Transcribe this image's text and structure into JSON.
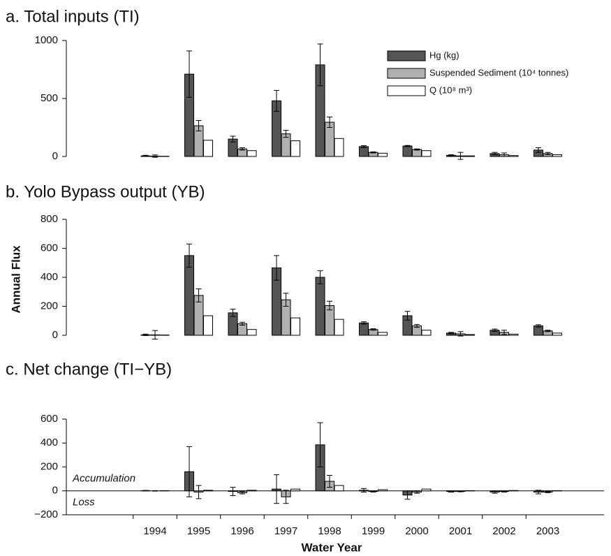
{
  "chart_data": [
    {
      "type": "bar",
      "title": "a. Total inputs (TI)",
      "ylim": [
        0,
        1000
      ],
      "yticks": [
        0,
        500,
        1000
      ],
      "legend": "upper right",
      "series": [
        {
          "name": "Hg (kg)",
          "color": "#555555",
          "values": [
            5,
            710,
            150,
            480,
            790,
            85,
            90,
            10,
            25,
            55
          ],
          "errors": [
            5,
            200,
            25,
            90,
            180,
            8,
            5,
            5,
            10,
            20
          ]
        },
        {
          "name": "Suspended Sediment (10⁴ tonnes)",
          "color": "#b0b0b0",
          "values": [
            3,
            265,
            65,
            195,
            295,
            35,
            60,
            5,
            15,
            25
          ],
          "errors": [
            10,
            45,
            10,
            30,
            45,
            5,
            5,
            30,
            15,
            10
          ]
        },
        {
          "name": "Q (10⁸ m³)",
          "color": "#ffffff",
          "values": [
            2,
            140,
            50,
            135,
            155,
            28,
            50,
            5,
            8,
            15
          ]
        }
      ]
    },
    {
      "type": "bar",
      "title": "b. Yolo Bypass output (YB)",
      "ylabel": "Annual Flux",
      "ylim": [
        0,
        800
      ],
      "yticks": [
        0,
        200,
        400,
        600,
        800
      ],
      "series": [
        {
          "color": "#555555",
          "values": [
            3,
            550,
            155,
            465,
            400,
            85,
            135,
            15,
            35,
            65
          ],
          "errors": [
            5,
            80,
            25,
            85,
            45,
            8,
            30,
            5,
            8,
            8
          ]
        },
        {
          "color": "#b0b0b0",
          "values": [
            3,
            275,
            80,
            245,
            205,
            40,
            65,
            10,
            20,
            30
          ],
          "errors": [
            30,
            45,
            10,
            45,
            30,
            5,
            10,
            15,
            15,
            5
          ]
        },
        {
          "color": "#ffffff",
          "values": [
            2,
            135,
            40,
            120,
            110,
            20,
            35,
            5,
            8,
            15
          ]
        }
      ]
    },
    {
      "type": "bar",
      "title": "c. Net change (TI−YB)",
      "xlabel": "Water Year",
      "ylim": [
        -200,
        600
      ],
      "yticks": [
        {
          "value": -200,
          "label": "−200"
        },
        0,
        200,
        400,
        600
      ],
      "categories": [
        "1994",
        "1995",
        "1996",
        "1997",
        "1998",
        "1999",
        "2000",
        "2001",
        "2002",
        "2003"
      ],
      "annotations": [
        "Accumulation",
        "Loss"
      ],
      "series": [
        {
          "color": "#555555",
          "values": [
            2,
            160,
            -5,
            15,
            385,
            5,
            -35,
            -5,
            -10,
            -10
          ],
          "errors": [
            2,
            210,
            35,
            120,
            185,
            15,
            35,
            5,
            10,
            15
          ]
        },
        {
          "color": "#b0b0b0",
          "values": [
            0,
            -10,
            -15,
            -50,
            80,
            -5,
            -10,
            -5,
            -5,
            -10
          ],
          "errors": [
            2,
            55,
            10,
            55,
            50,
            5,
            10,
            3,
            5,
            5
          ]
        },
        {
          "color": "#ffffff",
          "values": [
            2,
            5,
            5,
            15,
            45,
            10,
            15,
            2,
            3,
            2
          ]
        }
      ]
    }
  ]
}
